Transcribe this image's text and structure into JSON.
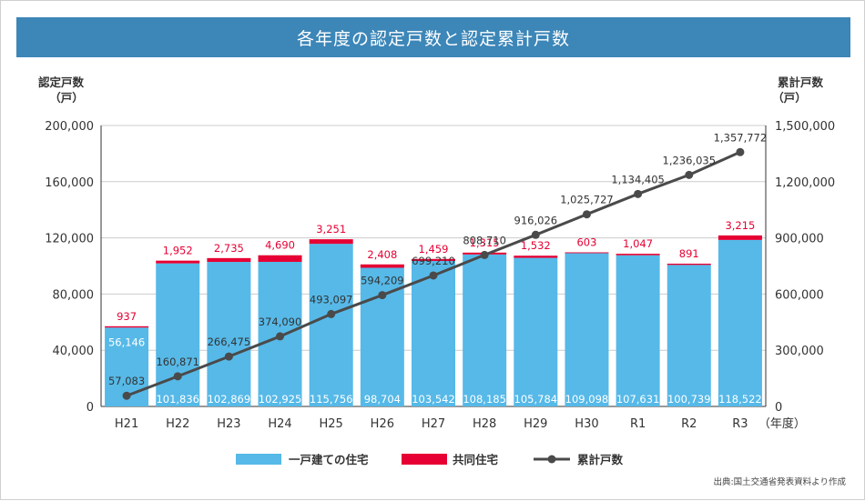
{
  "title": "各年度の認定戸数と認定累計戸数",
  "source": "出典:国土交通省発表資料より作成",
  "colors": {
    "detached": "#56b9e8",
    "apartment": "#e60033",
    "cumulative": "#4a4a4a",
    "grid": "#cccccc",
    "title_bar": "#3c86b8"
  },
  "chart_data": {
    "type": "bar",
    "title": "各年度の認定戸数と認定累計戸数",
    "categories": [
      "H21",
      "H22",
      "H23",
      "H24",
      "H25",
      "H26",
      "H27",
      "H28",
      "H29",
      "H30",
      "R1",
      "R2",
      "R3"
    ],
    "xlabel_suffix": "（年度）",
    "ylabel_left": [
      "認定戸数",
      "（戸）"
    ],
    "ylabel_right": [
      "累計戸数",
      "（戸）"
    ],
    "ylim_left": [
      0,
      200000
    ],
    "ylim_right": [
      0,
      1500000
    ],
    "yticks_left": [
      "0",
      "40,000",
      "80,000",
      "120,000",
      "160,000",
      "200,000"
    ],
    "yticks_right": [
      "0",
      "300,000",
      "600,000",
      "900,000",
      "1,200,000",
      "1,500,000"
    ],
    "grid": true,
    "legend_position": "bottom",
    "series": [
      {
        "name": "一戸建ての住宅",
        "kind": "bar-stacked",
        "axis": "left",
        "values": [
          56146,
          101836,
          102869,
          102925,
          115756,
          98704,
          103542,
          108185,
          105784,
          109098,
          107631,
          100739,
          118522
        ],
        "labels": [
          "56,146",
          "101,836",
          "102,869",
          "102,925",
          "115,756",
          "98,704",
          "103,542",
          "108,185",
          "105,784",
          "109,098",
          "107,631",
          "100,739",
          "118,522"
        ]
      },
      {
        "name": "共同住宅",
        "kind": "bar-stacked",
        "axis": "left",
        "values": [
          937,
          1952,
          2735,
          4690,
          3251,
          2408,
          1459,
          1315,
          1532,
          603,
          1047,
          891,
          3215
        ],
        "labels": [
          "937",
          "1,952",
          "2,735",
          "4,690",
          "3,251",
          "2,408",
          "1,459",
          "1,315",
          "1,532",
          "603",
          "1,047",
          "891",
          "3,215"
        ]
      },
      {
        "name": "累計戸数",
        "kind": "line",
        "axis": "right",
        "values": [
          57083,
          160871,
          266475,
          374090,
          493097,
          594209,
          699210,
          808710,
          916026,
          1025727,
          1134405,
          1236035,
          1357772
        ],
        "labels": [
          "57,083",
          "160,871",
          "266,475",
          "374,090",
          "493,097",
          "594,209",
          "699,210",
          "808,710",
          "916,026",
          "1,025,727",
          "1,134,405",
          "1,236,035",
          "1,357,772"
        ]
      }
    ]
  }
}
